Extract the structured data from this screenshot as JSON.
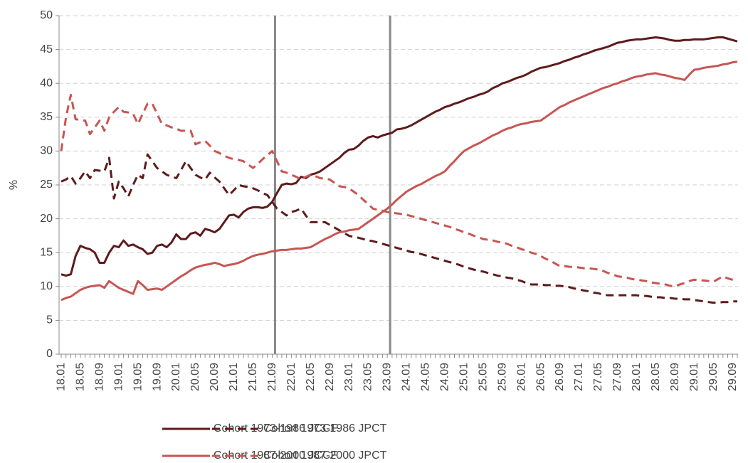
{
  "chart_data": {
    "type": "line",
    "ylabel": "%",
    "ylim": [
      0,
      50
    ],
    "yticks": [
      0,
      5,
      10,
      15,
      20,
      25,
      30,
      35,
      40,
      45,
      50
    ],
    "grid": true,
    "vlines": [
      "21.09",
      "23.09"
    ],
    "legend": "bottom",
    "categories": [
      "18.01",
      null,
      null,
      null,
      "18.05",
      null,
      null,
      null,
      "18.09",
      null,
      null,
      null,
      "19.01",
      null,
      null,
      null,
      "19.05",
      null,
      null,
      null,
      "19.09",
      null,
      null,
      null,
      "20.01",
      null,
      null,
      null,
      "20.05",
      null,
      null,
      null,
      "20.09",
      null,
      null,
      null,
      "21.01",
      null,
      null,
      null,
      "21.05",
      null,
      null,
      null,
      "21.09",
      null,
      null,
      null,
      "22.01",
      null,
      null,
      null,
      "22.05",
      null,
      null,
      null,
      "22.09",
      null,
      null,
      null,
      "23.01",
      null,
      null,
      null,
      "23.05",
      null,
      null,
      null,
      "23.09",
      null,
      null,
      null,
      "24.01",
      null,
      null,
      null,
      "24.05",
      null,
      null,
      null,
      "24.09",
      null,
      null,
      null,
      "25.01",
      null,
      null,
      null,
      "25.05",
      null,
      null,
      null,
      "25.09",
      null,
      null,
      null,
      "26.01",
      null,
      null,
      null,
      "26.05",
      null,
      null,
      null,
      "26.09",
      null,
      null,
      null,
      "27.01",
      null,
      null,
      null,
      "27.05",
      null,
      null,
      null,
      "27.09",
      null,
      null,
      null,
      "28.01",
      null,
      null,
      null,
      "28.05",
      null,
      null,
      null,
      "28.09",
      null,
      null,
      null,
      "29.01",
      null,
      null,
      null,
      "29.05",
      null,
      null,
      null,
      "29.09",
      null
    ],
    "series": [
      {
        "name": "Cohort 1973-1986 JCCF",
        "color": "#5e1b1c",
        "style": "solid",
        "values": [
          11.8,
          11.6,
          11.8,
          14.5,
          16.0,
          15.7,
          15.5,
          15.0,
          13.5,
          13.5,
          15.0,
          16.0,
          15.8,
          16.8,
          16.0,
          16.2,
          15.8,
          15.5,
          14.8,
          15.0,
          16.0,
          16.2,
          15.8,
          16.5,
          17.7,
          17.0,
          17.0,
          17.8,
          18.0,
          17.5,
          18.5,
          18.3,
          18.0,
          18.5,
          19.5,
          20.5,
          20.6,
          20.2,
          21.0,
          21.5,
          21.7,
          21.7,
          21.6,
          21.8,
          22.5,
          23.8,
          25.0,
          25.2,
          25.1,
          25.3,
          26.2,
          26.0,
          26.5,
          26.7,
          27.0,
          27.5,
          28.0,
          28.5,
          29.0,
          29.7,
          30.2,
          30.3,
          30.8,
          31.5,
          32.0,
          32.2,
          32.0,
          32.3,
          32.5,
          32.7,
          33.2,
          33.3,
          33.5,
          33.8,
          34.2,
          34.6,
          35.0,
          35.4,
          35.8,
          36.1,
          36.5,
          36.7,
          37.0,
          37.2,
          37.5,
          37.8,
          38.0,
          38.3,
          38.5,
          38.8,
          39.3,
          39.6,
          40.0,
          40.2,
          40.5,
          40.8,
          41.0,
          41.3,
          41.7,
          42.0,
          42.3,
          42.4,
          42.6,
          42.8,
          43.0,
          43.3,
          43.5,
          43.8,
          44.0,
          44.3,
          44.5,
          44.8,
          45.0,
          45.2,
          45.4,
          45.7,
          46.0,
          46.1,
          46.3,
          46.4,
          46.5,
          46.5,
          46.6,
          46.7,
          46.8,
          46.7,
          46.6,
          46.4,
          46.3,
          46.3,
          46.4,
          46.4,
          46.5,
          46.5,
          46.5,
          46.6,
          46.7,
          46.8,
          46.8,
          46.6,
          46.4,
          46.2
        ]
      },
      {
        "name": "Cohort 1973-1986 JPCT",
        "color": "#5e1b1c",
        "style": "dashed",
        "values": [
          25.5,
          25.8,
          26.3,
          25.2,
          26.0,
          27.0,
          26.0,
          27.2,
          27.1,
          27.0,
          29.0,
          23.0,
          25.5,
          24.5,
          23.3,
          25.0,
          26.5,
          26.0,
          29.5,
          28.5,
          27.5,
          27.0,
          26.5,
          26.2,
          26.0,
          27.2,
          28.5,
          27.5,
          26.5,
          26.1,
          25.8,
          26.8,
          26.1,
          25.5,
          24.5,
          23.5,
          24.2,
          25.0,
          24.8,
          24.7,
          24.5,
          24.2,
          23.8,
          23.5,
          22.5,
          21.5,
          21.0,
          20.5,
          21.0,
          21.2,
          21.5,
          20.5,
          19.5,
          19.5,
          19.5,
          19.5,
          19.1,
          18.7,
          18.3,
          17.9,
          17.5,
          17.3,
          17.2,
          17.0,
          16.8,
          16.7,
          16.5,
          16.3,
          16.1,
          15.9,
          15.7,
          15.5,
          15.3,
          15.1,
          15.0,
          14.8,
          14.6,
          14.4,
          14.2,
          14.0,
          13.8,
          13.6,
          13.4,
          13.2,
          12.9,
          12.7,
          12.5,
          12.3,
          12.2,
          12.0,
          11.8,
          11.6,
          11.5,
          11.3,
          11.2,
          11.0,
          10.8,
          10.5,
          10.3,
          10.3,
          10.3,
          10.2,
          10.2,
          10.1,
          10.1,
          10.0,
          9.9,
          9.7,
          9.6,
          9.4,
          9.3,
          9.1,
          9.0,
          8.8,
          8.7,
          8.7,
          8.7,
          8.7,
          8.7,
          8.7,
          8.7,
          8.6,
          8.6,
          8.5,
          8.4,
          8.4,
          8.3,
          8.3,
          8.2,
          8.2,
          8.1,
          8.1,
          8.0,
          7.9,
          7.8,
          7.7,
          7.6,
          7.6,
          7.7,
          7.7,
          7.8,
          7.8
        ]
      },
      {
        "name": "Cohort 1987-2000 JCCF",
        "color": "#c65653",
        "style": "solid",
        "values": [
          8.0,
          8.3,
          8.5,
          9.0,
          9.5,
          9.8,
          10.0,
          10.1,
          10.2,
          9.8,
          10.8,
          10.3,
          9.8,
          9.5,
          9.2,
          8.9,
          10.8,
          10.2,
          9.5,
          9.6,
          9.7,
          9.5,
          10.0,
          10.5,
          11.0,
          11.5,
          11.9,
          12.4,
          12.8,
          13.0,
          13.2,
          13.3,
          13.5,
          13.3,
          13.0,
          13.2,
          13.3,
          13.5,
          13.8,
          14.2,
          14.5,
          14.7,
          14.8,
          15.0,
          15.2,
          15.3,
          15.4,
          15.4,
          15.5,
          15.6,
          15.6,
          15.7,
          15.8,
          16.2,
          16.6,
          17.0,
          17.3,
          17.7,
          18.0,
          18.1,
          18.3,
          18.4,
          18.5,
          19.0,
          19.5,
          20.0,
          20.5,
          21.0,
          21.5,
          22.1,
          22.8,
          23.4,
          24.0,
          24.4,
          24.8,
          25.1,
          25.5,
          25.9,
          26.3,
          26.6,
          27.0,
          27.8,
          28.5,
          29.3,
          30.0,
          30.4,
          30.8,
          31.1,
          31.5,
          31.9,
          32.3,
          32.6,
          33.0,
          33.3,
          33.5,
          33.8,
          34.0,
          34.1,
          34.3,
          34.4,
          34.5,
          35.0,
          35.5,
          36.0,
          36.5,
          36.8,
          37.2,
          37.5,
          37.8,
          38.1,
          38.4,
          38.7,
          39.0,
          39.3,
          39.5,
          39.8,
          40.0,
          40.3,
          40.5,
          40.8,
          41.0,
          41.1,
          41.3,
          41.4,
          41.5,
          41.3,
          41.2,
          41.0,
          40.8,
          40.7,
          40.5,
          41.3,
          42.0,
          42.1,
          42.3,
          42.4,
          42.5,
          42.6,
          42.8,
          42.9,
          43.1,
          43.2
        ]
      },
      {
        "name": "Cohort 1987-2000 JPCT",
        "color": "#c65653",
        "style": "dashed",
        "values": [
          30.0,
          35.0,
          38.3,
          34.7,
          34.6,
          34.5,
          32.5,
          33.5,
          34.5,
          33.0,
          35.0,
          35.8,
          36.5,
          35.8,
          35.7,
          35.5,
          34.0,
          35.5,
          37.0,
          37.0,
          35.5,
          34.0,
          33.8,
          33.5,
          33.3,
          33.0,
          33.0,
          33.0,
          31.0,
          31.3,
          31.5,
          30.8,
          30.0,
          29.7,
          29.3,
          29.0,
          28.8,
          28.7,
          28.5,
          28.0,
          27.5,
          28.1,
          28.8,
          29.4,
          30.0,
          28.5,
          27.0,
          26.8,
          26.5,
          26.2,
          25.8,
          26.2,
          26.5,
          26.3,
          26.0,
          25.9,
          25.8,
          25.3,
          24.8,
          24.7,
          24.5,
          24.0,
          23.5,
          22.8,
          22.2,
          21.5,
          21.3,
          21.2,
          21.0,
          20.9,
          20.8,
          20.7,
          20.6,
          20.4,
          20.2,
          20.0,
          19.8,
          19.6,
          19.4,
          19.2,
          19.0,
          18.8,
          18.5,
          18.3,
          18.0,
          17.8,
          17.5,
          17.3,
          17.0,
          16.9,
          16.8,
          16.6,
          16.5,
          16.3,
          16.0,
          15.8,
          15.5,
          15.3,
          15.0,
          14.8,
          14.5,
          14.1,
          13.8,
          13.4,
          13.0,
          13.0,
          12.9,
          12.9,
          12.8,
          12.7,
          12.7,
          12.6,
          12.5,
          12.3,
          12.0,
          11.8,
          11.5,
          11.4,
          11.3,
          11.1,
          11.0,
          10.9,
          10.8,
          10.6,
          10.5,
          10.4,
          10.3,
          10.1,
          10.0,
          10.3,
          10.5,
          10.8,
          11.0,
          10.9,
          10.9,
          10.8,
          10.7,
          11.1,
          11.5,
          11.2,
          11.0,
          11.0
        ]
      }
    ]
  }
}
